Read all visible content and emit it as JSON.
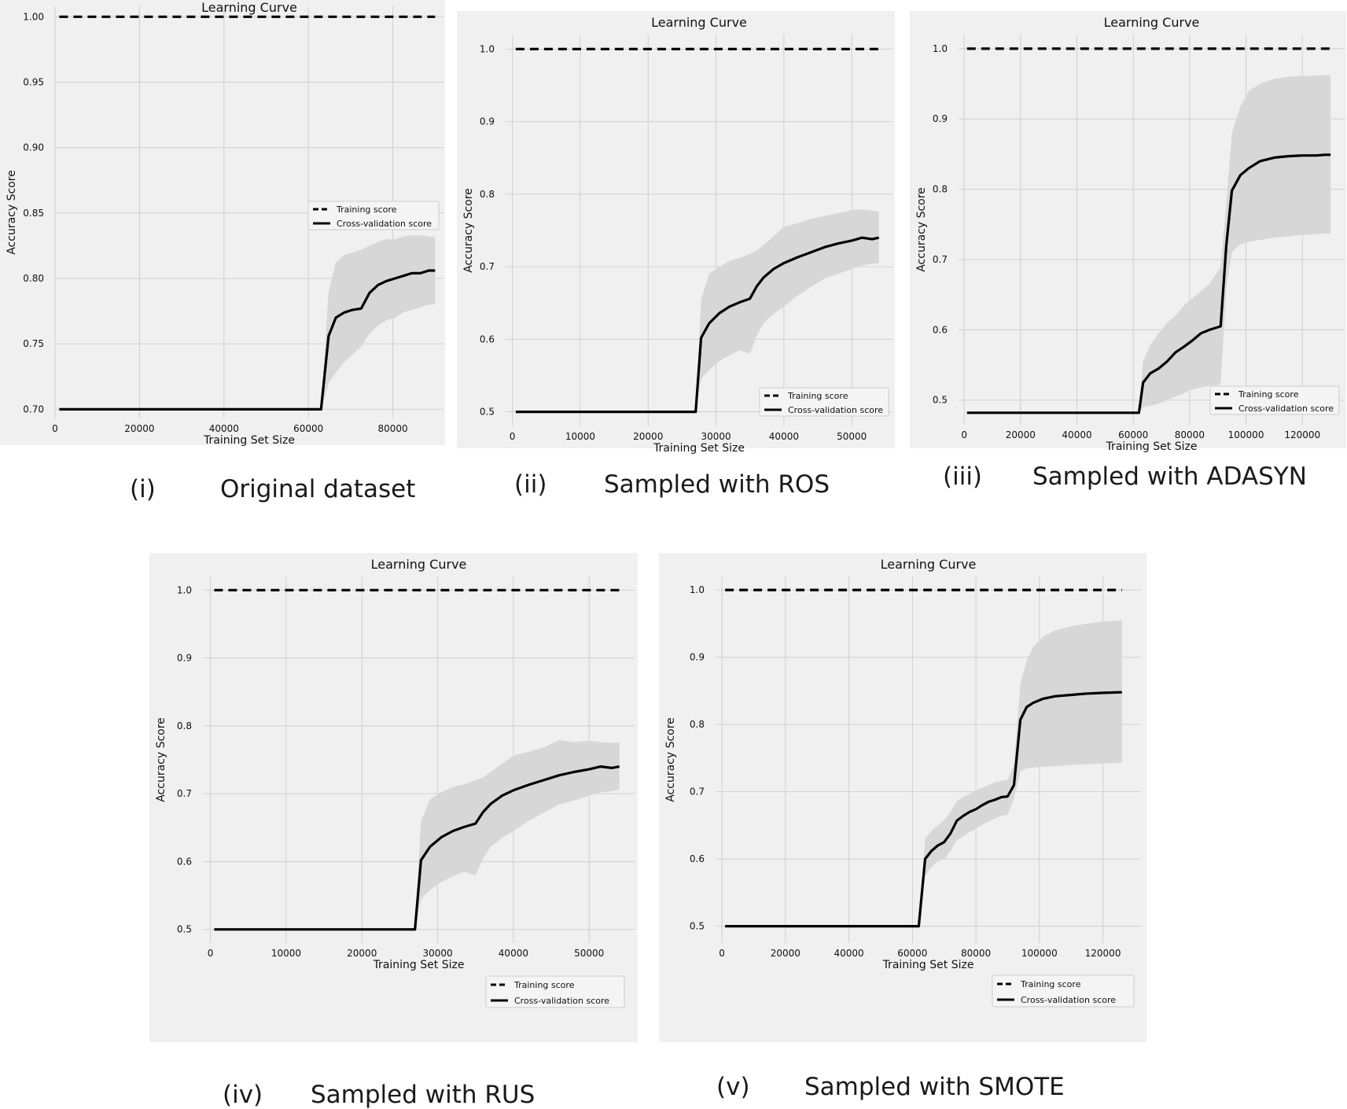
{
  "chart_data": [
    {
      "type": "line",
      "title": "Learning Curve",
      "xlabel": "Training Set Size",
      "ylabel": "Accuracy Score",
      "xlim": [
        0,
        92000
      ],
      "ylim": [
        0.693,
        1.008
      ],
      "xticks": [
        0,
        20000,
        40000,
        60000,
        80000
      ],
      "yticks": [
        0.7,
        0.75,
        0.8,
        0.85,
        0.9,
        0.95,
        1.0
      ],
      "ytick_labels": [
        "0.70",
        "0.75",
        "0.80",
        "0.85",
        "0.90",
        "0.95",
        "1.00"
      ],
      "grid": true,
      "legend": "center-right",
      "caption_num": "(i)",
      "caption_text": "Original dataset",
      "series": [
        {
          "name": "Training score",
          "style": "dashed",
          "x": [
            1000,
            90000
          ],
          "values": [
            1.0,
            1.0
          ]
        },
        {
          "name": "Cross-validation score",
          "style": "solid",
          "x": [
            1000,
            63000,
            64800,
            66500,
            68500,
            70500,
            72500,
            74500,
            76500,
            78500,
            80500,
            82500,
            84500,
            86500,
            88500,
            90000
          ],
          "values": [
            0.7,
            0.7,
            0.756,
            0.77,
            0.774,
            0.776,
            0.777,
            0.789,
            0.795,
            0.798,
            0.8,
            0.802,
            0.804,
            0.804,
            0.806,
            0.806
          ],
          "band_upper": [
            0.7,
            0.7,
            0.79,
            0.812,
            0.818,
            0.82,
            0.822,
            0.825,
            0.828,
            0.83,
            0.83,
            0.832,
            0.833,
            0.833,
            0.832,
            0.832
          ],
          "band_lower": [
            0.7,
            0.7,
            0.72,
            0.728,
            0.736,
            0.742,
            0.748,
            0.758,
            0.764,
            0.768,
            0.77,
            0.774,
            0.776,
            0.778,
            0.78,
            0.78
          ]
        }
      ]
    },
    {
      "type": "line",
      "title": "Learning Curve",
      "xlabel": "Training Set Size",
      "ylabel": "Accuracy Score",
      "xlim": [
        -1000,
        56000
      ],
      "ylim": [
        0.48,
        1.02
      ],
      "xticks": [
        0,
        10000,
        20000,
        30000,
        40000,
        50000
      ],
      "yticks": [
        0.5,
        0.6,
        0.7,
        0.8,
        0.9,
        1.0
      ],
      "ytick_labels": [
        "0.5",
        "0.6",
        "0.7",
        "0.8",
        "0.9",
        "1.0"
      ],
      "grid": true,
      "legend": "lower-right",
      "caption_num": "(ii)",
      "caption_text": "Sampled with ROS",
      "series": [
        {
          "name": "Training score",
          "style": "dashed",
          "x": [
            500,
            54000
          ],
          "values": [
            1.0,
            1.0
          ]
        },
        {
          "name": "Cross-validation score",
          "style": "solid",
          "x": [
            500,
            27000,
            27800,
            29000,
            30500,
            32000,
            33500,
            35000,
            36000,
            37000,
            38500,
            40000,
            42000,
            44000,
            46000,
            48000,
            50000,
            51500,
            53000,
            54000
          ],
          "values": [
            0.5,
            0.5,
            0.602,
            0.622,
            0.636,
            0.645,
            0.651,
            0.656,
            0.673,
            0.685,
            0.697,
            0.705,
            0.713,
            0.72,
            0.727,
            0.732,
            0.736,
            0.74,
            0.738,
            0.74
          ],
          "band_upper": [
            0.5,
            0.5,
            0.655,
            0.69,
            0.7,
            0.708,
            0.712,
            0.718,
            0.722,
            0.73,
            0.742,
            0.755,
            0.76,
            0.766,
            0.77,
            0.774,
            0.778,
            0.779,
            0.777,
            0.776
          ],
          "band_lower": [
            0.5,
            0.5,
            0.545,
            0.558,
            0.57,
            0.578,
            0.585,
            0.58,
            0.605,
            0.622,
            0.635,
            0.645,
            0.66,
            0.672,
            0.684,
            0.69,
            0.697,
            0.702,
            0.704,
            0.705
          ]
        }
      ]
    },
    {
      "type": "line",
      "title": "Learning Curve",
      "xlabel": "Training Set Size",
      "ylabel": "Accuracy Score",
      "xlim": [
        -2000,
        135000
      ],
      "ylim": [
        0.465,
        1.02
      ],
      "xticks": [
        0,
        20000,
        40000,
        60000,
        80000,
        100000,
        120000
      ],
      "yticks": [
        0.5,
        0.6,
        0.7,
        0.8,
        0.9,
        1.0
      ],
      "ytick_labels": [
        "0.5",
        "0.6",
        "0.7",
        "0.8",
        "0.9",
        "1.0"
      ],
      "grid": true,
      "legend": "lower-right",
      "caption_num": "(iii)",
      "caption_text": "Sampled with ADASYN",
      "series": [
        {
          "name": "Training score",
          "style": "dashed",
          "x": [
            1000,
            130000
          ],
          "values": [
            1.0,
            1.0
          ]
        },
        {
          "name": "Cross-validation score",
          "style": "solid",
          "x": [
            1000,
            62000,
            63500,
            66000,
            69000,
            72000,
            75000,
            78000,
            81000,
            84000,
            87000,
            91000,
            93000,
            95000,
            98000,
            101000,
            105000,
            110000,
            115000,
            120000,
            125000,
            128000,
            130000
          ],
          "values": [
            0.482,
            0.482,
            0.525,
            0.538,
            0.545,
            0.555,
            0.568,
            0.576,
            0.585,
            0.595,
            0.6,
            0.605,
            0.72,
            0.798,
            0.82,
            0.83,
            0.84,
            0.845,
            0.847,
            0.848,
            0.848,
            0.849,
            0.849
          ],
          "band_upper": [
            0.482,
            0.482,
            0.555,
            0.578,
            0.595,
            0.61,
            0.62,
            0.635,
            0.645,
            0.655,
            0.665,
            0.69,
            0.78,
            0.88,
            0.918,
            0.94,
            0.95,
            0.957,
            0.96,
            0.961,
            0.962,
            0.962,
            0.962
          ],
          "band_lower": [
            0.482,
            0.482,
            0.49,
            0.492,
            0.495,
            0.5,
            0.505,
            0.51,
            0.515,
            0.518,
            0.52,
            0.522,
            0.66,
            0.71,
            0.722,
            0.725,
            0.728,
            0.731,
            0.733,
            0.735,
            0.736,
            0.737,
            0.737
          ]
        }
      ]
    },
    {
      "type": "line",
      "title": "Learning Curve",
      "xlabel": "Training Set Size",
      "ylabel": "Accuracy Score",
      "xlim": [
        -1000,
        56000
      ],
      "ylim": [
        0.48,
        1.02
      ],
      "xticks": [
        0,
        10000,
        20000,
        30000,
        40000,
        50000
      ],
      "yticks": [
        0.5,
        0.6,
        0.7,
        0.8,
        0.9,
        1.0
      ],
      "ytick_labels": [
        "0.5",
        "0.6",
        "0.7",
        "0.8",
        "0.9",
        "1.0"
      ],
      "grid": true,
      "legend": "lower-right",
      "caption_num": "(iv)",
      "caption_text": "Sampled with RUS",
      "series": [
        {
          "name": "Training score",
          "style": "dashed",
          "x": [
            500,
            54000
          ],
          "values": [
            1.0,
            1.0
          ]
        },
        {
          "name": "Cross-validation score",
          "style": "solid",
          "x": [
            500,
            27000,
            27800,
            29000,
            30500,
            32000,
            33500,
            35000,
            36000,
            37000,
            38500,
            40000,
            42000,
            44000,
            46000,
            48000,
            50000,
            51500,
            53000,
            54000
          ],
          "values": [
            0.5,
            0.5,
            0.602,
            0.622,
            0.636,
            0.645,
            0.651,
            0.656,
            0.673,
            0.685,
            0.697,
            0.705,
            0.713,
            0.72,
            0.727,
            0.732,
            0.736,
            0.74,
            0.738,
            0.74
          ],
          "band_upper": [
            0.5,
            0.5,
            0.66,
            0.692,
            0.702,
            0.71,
            0.714,
            0.72,
            0.724,
            0.732,
            0.744,
            0.756,
            0.762,
            0.768,
            0.779,
            0.776,
            0.778,
            0.776,
            0.775,
            0.775
          ],
          "band_lower": [
            0.5,
            0.5,
            0.545,
            0.558,
            0.57,
            0.578,
            0.585,
            0.58,
            0.605,
            0.622,
            0.635,
            0.645,
            0.66,
            0.672,
            0.684,
            0.69,
            0.697,
            0.702,
            0.704,
            0.706
          ]
        }
      ]
    },
    {
      "type": "line",
      "title": "Learning Curve",
      "xlabel": "Training Set Size",
      "ylabel": "Accuracy Score",
      "xlim": [
        -2000,
        132000
      ],
      "ylim": [
        0.475,
        1.02
      ],
      "xticks": [
        0,
        20000,
        40000,
        60000,
        80000,
        100000,
        120000
      ],
      "yticks": [
        0.5,
        0.6,
        0.7,
        0.8,
        0.9,
        1.0
      ],
      "ytick_labels": [
        "0.5",
        "0.6",
        "0.7",
        "0.8",
        "0.9",
        "1.0"
      ],
      "grid": true,
      "legend": "lower-right",
      "caption_num": "(v)",
      "caption_text": "Sampled with SMOTE",
      "series": [
        {
          "name": "Training score",
          "style": "dashed",
          "x": [
            1000,
            126000
          ],
          "values": [
            1.0,
            1.0
          ]
        },
        {
          "name": "Cross-validation score",
          "style": "solid",
          "x": [
            1000,
            62000,
            64000,
            66000,
            68000,
            70000,
            72000,
            74000,
            76000,
            78000,
            80000,
            82000,
            84000,
            86000,
            88000,
            90000,
            92000,
            94000,
            96000,
            98000,
            101000,
            105000,
            110000,
            115000,
            120000,
            126000
          ],
          "values": [
            0.5,
            0.5,
            0.6,
            0.612,
            0.62,
            0.625,
            0.638,
            0.657,
            0.664,
            0.67,
            0.674,
            0.68,
            0.685,
            0.688,
            0.692,
            0.693,
            0.71,
            0.807,
            0.826,
            0.832,
            0.838,
            0.842,
            0.844,
            0.846,
            0.847,
            0.848
          ],
          "band_upper": [
            0.5,
            0.5,
            0.63,
            0.642,
            0.65,
            0.658,
            0.67,
            0.686,
            0.692,
            0.697,
            0.702,
            0.706,
            0.71,
            0.714,
            0.716,
            0.718,
            0.74,
            0.86,
            0.895,
            0.915,
            0.93,
            0.94,
            0.946,
            0.95,
            0.953,
            0.955
          ],
          "band_lower": [
            0.5,
            0.5,
            0.575,
            0.588,
            0.596,
            0.6,
            0.612,
            0.628,
            0.634,
            0.64,
            0.645,
            0.651,
            0.656,
            0.66,
            0.664,
            0.666,
            0.69,
            0.73,
            0.735,
            0.736,
            0.737,
            0.738,
            0.74,
            0.741,
            0.742,
            0.743
          ]
        }
      ]
    }
  ]
}
